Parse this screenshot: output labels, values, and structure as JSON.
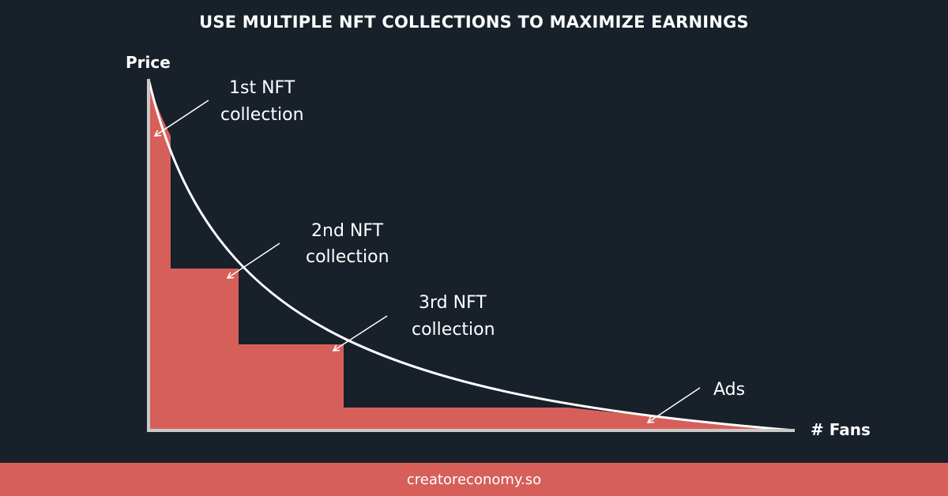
{
  "title": "USE MULTIPLE NFT COLLECTIONS TO MAXIMIZE EARNINGS",
  "axes": {
    "y_label": "Price",
    "x_label": "# Fans"
  },
  "annotations": {
    "first": [
      "1st NFT",
      "collection"
    ],
    "second": [
      "2nd NFT",
      "collection"
    ],
    "third": [
      "3rd NFT",
      "collection"
    ],
    "ads": "Ads"
  },
  "footer": "creatoreconomy.so",
  "colors": {
    "background": "#18202a",
    "fill": "#d65f5a",
    "line": "#ffffff",
    "axis": "#c9c9c9"
  }
}
